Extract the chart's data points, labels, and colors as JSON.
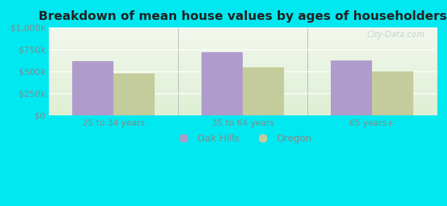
{
  "title": "Breakdown of mean house values by ages of householders",
  "categories": [
    "25 to 34 years",
    "35 to 64 years",
    "65 years+"
  ],
  "oak_hills_values": [
    620000,
    720000,
    625000
  ],
  "oregon_values": [
    475000,
    545000,
    500000
  ],
  "oak_hills_color": "#b09ccc",
  "oregon_color": "#c5cc9c",
  "background_outer": "#00e8f0",
  "ylim": [
    0,
    1000000
  ],
  "yticks": [
    0,
    250000,
    500000,
    750000,
    1000000
  ],
  "ytick_labels": [
    "$0",
    "$250k",
    "$500k",
    "$750k",
    "$1,000k"
  ],
  "legend_labels": [
    "Oak Hills",
    "Oregon"
  ],
  "watermark": "City-Data.com",
  "bar_width": 0.32,
  "title_fontsize": 13,
  "tick_fontsize": 9,
  "legend_fontsize": 10,
  "grid_color": "#e0e8d8",
  "tick_color": "#888888"
}
